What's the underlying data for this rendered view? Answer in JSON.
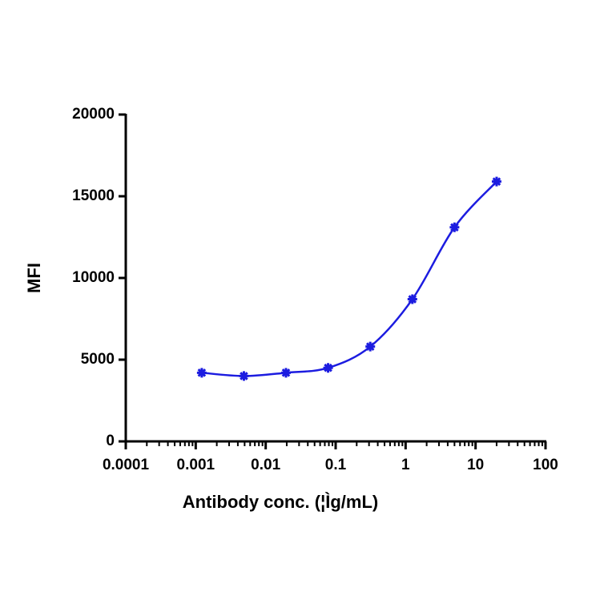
{
  "chart_data": {
    "type": "line",
    "x_label": "Antibody conc. (¦Ìg/mL)",
    "y_label": "MFI",
    "xscale": "log",
    "minor_ticks": true,
    "x": [
      0.00122,
      0.00488,
      0.0195,
      0.078,
      0.3125,
      1.25,
      5,
      20
    ],
    "series": [
      {
        "color": "#1c1ce0",
        "values": [
          4200,
          4000,
          4200,
          4500,
          5800,
          8700,
          13100,
          15900
        ]
      }
    ],
    "xlim": [
      0.0001,
      100
    ],
    "xticks": [
      0.0001,
      0.001,
      0.01,
      0.1,
      1,
      10,
      100
    ],
    "ylim": [
      0,
      20000
    ],
    "yticks": [
      0,
      5000,
      10000,
      15000,
      20000
    ]
  }
}
